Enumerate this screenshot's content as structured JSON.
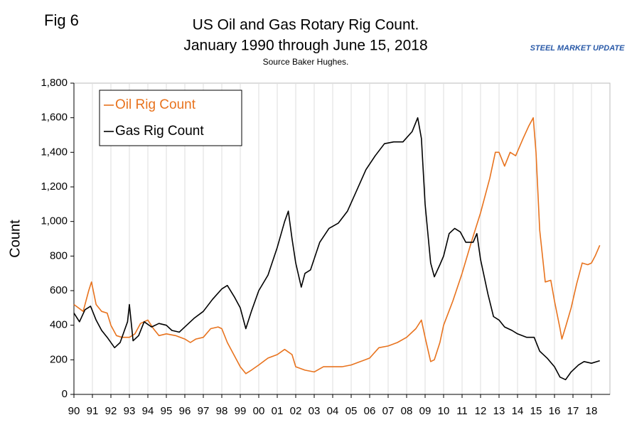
{
  "chart_data": {
    "type": "line",
    "figure_label": "Fig 6",
    "title": "US Oil and Gas Rotary Rig Count.",
    "title_line2": "January 1990 through June 15, 2018",
    "subtitle": "Source Baker Hughes.",
    "logo": "STEEL MARKET UPDATE",
    "y_label": "Count",
    "xlim": [
      1990,
      2019
    ],
    "xticks": [
      {
        "value": 1990,
        "label": "90"
      },
      {
        "value": 1991,
        "label": "91"
      },
      {
        "value": 1992,
        "label": "92"
      },
      {
        "value": 1993,
        "label": "93"
      },
      {
        "value": 1994,
        "label": "94"
      },
      {
        "value": 1995,
        "label": "95"
      },
      {
        "value": 1996,
        "label": "96"
      },
      {
        "value": 1997,
        "label": "97"
      },
      {
        "value": 1998,
        "label": "98"
      },
      {
        "value": 1999,
        "label": "99"
      },
      {
        "value": 2000,
        "label": "00"
      },
      {
        "value": 2001,
        "label": "01"
      },
      {
        "value": 2002,
        "label": "02"
      },
      {
        "value": 2003,
        "label": "03"
      },
      {
        "value": 2004,
        "label": "04"
      },
      {
        "value": 2005,
        "label": "05"
      },
      {
        "value": 2006,
        "label": "06"
      },
      {
        "value": 2007,
        "label": "07"
      },
      {
        "value": 2008,
        "label": "08"
      },
      {
        "value": 2009,
        "label": "09"
      },
      {
        "value": 2010,
        "label": "10"
      },
      {
        "value": 2011,
        "label": "11"
      },
      {
        "value": 2012,
        "label": "12"
      },
      {
        "value": 2013,
        "label": "13"
      },
      {
        "value": 2014,
        "label": "14"
      },
      {
        "value": 2015,
        "label": "15"
      },
      {
        "value": 2016,
        "label": "16"
      },
      {
        "value": 2017,
        "label": "17"
      },
      {
        "value": 2018,
        "label": "18"
      }
    ],
    "ylim": [
      0,
      1800
    ],
    "yticks": [
      0,
      200,
      400,
      600,
      800,
      {
        "value": 1000,
        "label": "1,000"
      },
      {
        "value": 1200,
        "label": "1,200"
      },
      {
        "value": 1400,
        "label": "1,400"
      },
      {
        "value": 1600,
        "label": "1,600"
      },
      {
        "value": 1800,
        "label": "1,800"
      }
    ],
    "grid": "x",
    "legend": "upper-left",
    "series": [
      {
        "name": "Oil Rig Count",
        "color": "#e8731e",
        "x": [
          1990.0,
          1990.5,
          1990.8,
          1990.95,
          1991.2,
          1991.5,
          1991.8,
          1992.0,
          1992.3,
          1992.6,
          1993.0,
          1993.3,
          1993.6,
          1994.0,
          1994.3,
          1994.6,
          1995.0,
          1995.5,
          1996.0,
          1996.3,
          1996.6,
          1997.0,
          1997.4,
          1997.8,
          1998.0,
          1998.3,
          1998.6,
          1999.0,
          1999.3,
          1999.6,
          2000.0,
          2000.5,
          2001.0,
          2001.4,
          2001.8,
          2002.0,
          2002.5,
          2003.0,
          2003.5,
          2004.0,
          2004.5,
          2005.0,
          2005.5,
          2006.0,
          2006.5,
          2007.0,
          2007.5,
          2008.0,
          2008.5,
          2008.8,
          2009.0,
          2009.3,
          2009.5,
          2009.8,
          2010.0,
          2010.5,
          2011.0,
          2011.5,
          2012.0,
          2012.5,
          2012.8,
          2013.0,
          2013.3,
          2013.6,
          2013.9,
          2014.3,
          2014.6,
          2014.85,
          2015.0,
          2015.2,
          2015.5,
          2015.8,
          2016.0,
          2016.3,
          2016.4,
          2016.6,
          2016.9,
          2017.2,
          2017.5,
          2017.8,
          2018.0,
          2018.2,
          2018.45
        ],
        "values": [
          520,
          480,
          600,
          650,
          520,
          480,
          470,
          400,
          340,
          330,
          330,
          350,
          410,
          430,
          380,
          340,
          350,
          340,
          320,
          300,
          320,
          330,
          380,
          390,
          380,
          300,
          240,
          160,
          120,
          140,
          170,
          210,
          230,
          260,
          230,
          160,
          140,
          130,
          160,
          160,
          160,
          170,
          190,
          210,
          270,
          280,
          300,
          330,
          380,
          430,
          330,
          190,
          200,
          300,
          400,
          540,
          700,
          880,
          1050,
          1250,
          1400,
          1400,
          1320,
          1400,
          1380,
          1480,
          1550,
          1600,
          1400,
          950,
          650,
          660,
          540,
          380,
          320,
          390,
          500,
          640,
          760,
          750,
          760,
          800,
          862
        ]
      },
      {
        "name": "Gas Rig Count",
        "color": "#000000",
        "x": [
          1990.0,
          1990.3,
          1990.6,
          1990.9,
          1991.2,
          1991.5,
          1991.8,
          1992.2,
          1992.5,
          1992.9,
          1993.0,
          1993.2,
          1993.5,
          1993.8,
          1994.2,
          1994.6,
          1995.0,
          1995.3,
          1995.7,
          1996.0,
          1996.5,
          1997.0,
          1997.5,
          1998.0,
          1998.3,
          1998.7,
          1999.0,
          1999.3,
          1999.6,
          2000.0,
          2000.5,
          2001.0,
          2001.4,
          2001.6,
          2001.8,
          2002.0,
          2002.3,
          2002.5,
          2002.8,
          2003.3,
          2003.8,
          2004.3,
          2004.8,
          2005.3,
          2005.8,
          2006.3,
          2006.8,
          2007.3,
          2007.8,
          2008.3,
          2008.6,
          2008.8,
          2009.0,
          2009.3,
          2009.5,
          2009.8,
          2010.0,
          2010.3,
          2010.6,
          2010.9,
          2011.2,
          2011.6,
          2011.8,
          2012.0,
          2012.4,
          2012.7,
          2013.0,
          2013.3,
          2013.7,
          2014.0,
          2014.5,
          2014.9,
          2015.2,
          2015.6,
          2016.0,
          2016.3,
          2016.6,
          2016.9,
          2017.3,
          2017.6,
          2018.0,
          2018.45
        ],
        "values": [
          470,
          420,
          490,
          510,
          430,
          370,
          330,
          270,
          300,
          420,
          520,
          310,
          340,
          420,
          390,
          410,
          400,
          370,
          360,
          390,
          440,
          480,
          550,
          610,
          630,
          560,
          500,
          380,
          480,
          600,
          690,
          850,
          1000,
          1060,
          900,
          760,
          620,
          700,
          720,
          880,
          960,
          990,
          1060,
          1180,
          1300,
          1380,
          1450,
          1460,
          1460,
          1520,
          1600,
          1480,
          1100,
          760,
          680,
          750,
          800,
          930,
          960,
          940,
          880,
          880,
          930,
          780,
          580,
          450,
          430,
          390,
          370,
          350,
          330,
          330,
          250,
          210,
          160,
          100,
          85,
          130,
          170,
          190,
          180,
          195
        ]
      }
    ]
  }
}
